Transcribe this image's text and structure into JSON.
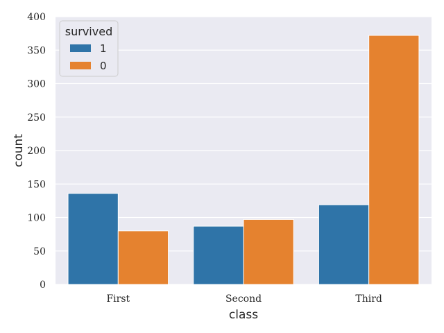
{
  "chart_data": {
    "type": "bar",
    "categories": [
      "First",
      "Second",
      "Third"
    ],
    "series": [
      {
        "name": "1",
        "values": [
          136,
          87,
          119
        ]
      },
      {
        "name": "0",
        "values": [
          80,
          97,
          372
        ]
      }
    ],
    "title": "",
    "xlabel": "class",
    "ylabel": "count",
    "ylim": [
      0,
      400
    ],
    "yticks": [
      0,
      50,
      100,
      150,
      200,
      250,
      300,
      350,
      400
    ],
    "grid": true,
    "legend": {
      "title": "survived",
      "placement": "top-left"
    },
    "colors": {
      "series": [
        "#2f74a8",
        "#e5822f"
      ],
      "background": "#eaeaf2",
      "grid": "#ffffff",
      "bar_edge": "#ffffff"
    }
  }
}
